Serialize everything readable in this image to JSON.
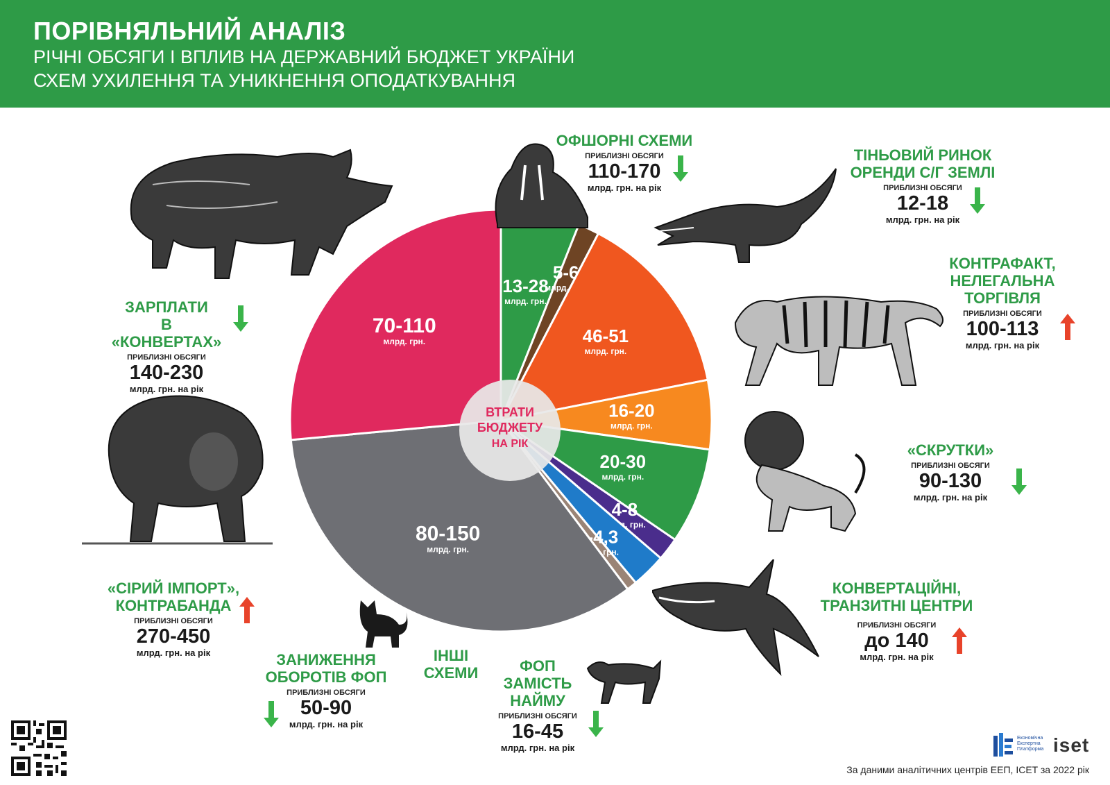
{
  "header": {
    "title": "ПОРІВНЯЛЬНИЙ АНАЛІЗ",
    "subtitle_line1": "РІЧНІ ОБСЯГИ І ВПЛИВ НА ДЕРЖАВНИЙ БЮДЖЕТ УКРАЇНИ",
    "subtitle_line2": "СХЕМ УХИЛЕННЯ ТА УНИКНЕННЯ ОПОДАТКУВАННЯ"
  },
  "center_label": [
    "ВТРАТИ",
    "БЮДЖЕТУ",
    "НА РІК"
  ],
  "schemes": [
    {
      "id": "offshore",
      "name": [
        "ОФШОРНІ СХЕМИ"
      ],
      "volume_label": "ПРИБЛИЗНІ ОБСЯГИ",
      "volume": "110-170",
      "unit": "млрд. грн. на рік",
      "trend": "down",
      "animal": "walrus"
    },
    {
      "id": "land",
      "name": [
        "ТІНЬОВИЙ РИНОК",
        "ОРЕНДИ С/Г ЗЕМЛІ"
      ],
      "volume_label": "ПРИБЛИЗНІ ОБСЯГИ",
      "volume": "12-18",
      "unit": "млрд. грн. на рік",
      "trend": "down",
      "animal": "crocodile"
    },
    {
      "id": "counterfeit",
      "name": [
        "КОНТРАФАКТ,",
        "НЕЛЕГАЛЬНА",
        "ТОРГІВЛЯ"
      ],
      "volume_label": "ПРИБЛИЗНІ ОБСЯГИ",
      "volume": "100-113",
      "unit": "млрд. грн. на рік",
      "trend": "up",
      "animal": "tiger"
    },
    {
      "id": "twists",
      "name": [
        "«СКРУТКИ»"
      ],
      "volume_label": "ПРИБЛИЗНІ ОБСЯГИ",
      "volume": "90-130",
      "unit": "млрд. грн. на рік",
      "trend": "down",
      "animal": "lion"
    },
    {
      "id": "conversion",
      "name": [
        "КОНВЕРТАЦІЙНІ,",
        "ТРАНЗИТНІ ЦЕНТРИ"
      ],
      "volume_label": "ПРИБЛИЗНІ ОБСЯГИ",
      "volume": "до 140",
      "unit": "млрд. грн. на рік",
      "trend": "up",
      "animal": "shark"
    },
    {
      "id": "fop_hire",
      "name": [
        "ФОП ЗАМІСТЬ",
        "НАЙМУ"
      ],
      "volume_label": "ПРИБЛИЗНІ ОБСЯГИ",
      "volume": "16-45",
      "unit": "млрд. грн. на рік",
      "trend": "down",
      "animal": "wolf"
    },
    {
      "id": "other",
      "name": [
        "ІНШІ",
        "СХЕМИ"
      ],
      "animal": "cat"
    },
    {
      "id": "fop_turnover",
      "name": [
        "ЗАНИЖЕННЯ",
        "ОБОРОТІВ ФОП"
      ],
      "volume_label": "ПРИБЛИЗНІ ОБСЯГИ",
      "volume": "50-90",
      "unit": "млрд. грн. на рік",
      "trend": "down"
    },
    {
      "id": "import",
      "name": [
        "«СІРИЙ ІМПОРТ»,",
        "КОНТРАБАНДА"
      ],
      "volume_label": "ПРИБЛИЗНІ ОБСЯГИ",
      "volume": "270-450",
      "unit": "млрд. грн. на рік",
      "trend": "up",
      "animal": "bear"
    },
    {
      "id": "salaries",
      "name": [
        "ЗАРПЛАТИ",
        "В «КОНВЕРТАХ»"
      ],
      "volume_label": "ПРИБЛИЗНІ ОБСЯГИ",
      "volume": "140-230",
      "unit": "млрд. грн. на рік",
      "trend": "down",
      "animal": "rhino"
    }
  ],
  "chart_data": {
    "type": "pie",
    "title": "ВТРАТИ БЮДЖЕТУ НА РІК",
    "unit_label": "млрд. грн.",
    "slices": [
      {
        "label": "13-28",
        "value": 20.5,
        "color": "#2e9b47",
        "scheme": "offshore"
      },
      {
        "label": "5-6",
        "value": 5.5,
        "color": "#6e4424",
        "scheme": "land"
      },
      {
        "label": "46-51",
        "value": 48.5,
        "color": "#f0571f",
        "scheme": "counterfeit"
      },
      {
        "label": "16-20",
        "value": 18,
        "color": "#f7891f",
        "scheme": "twists"
      },
      {
        "label": "20-30",
        "value": 25,
        "color": "#2e9b47",
        "scheme": "conversion"
      },
      {
        "label": "4-8",
        "value": 6,
        "color": "#4a2d8c",
        "scheme": "fop_hire"
      },
      {
        "label": "",
        "value": 9,
        "color": "#1f7bc9",
        "scheme": "other"
      },
      {
        "label": "1-4,3",
        "value": 2.65,
        "color": "#9a8476",
        "scheme": "fop_turnover"
      },
      {
        "label": "80-150",
        "value": 115,
        "color": "#6e6f74",
        "scheme": "import"
      },
      {
        "label": "70-110",
        "value": 90,
        "color": "#e0295e",
        "scheme": "salaries"
      }
    ]
  },
  "footer": {
    "source": "За даними аналітичних центрів ЕЕП, ICET за 2022 рік",
    "eep_logo_text": [
      "Економічна",
      "Експертна",
      "Платформа"
    ],
    "iset_logo": "iset"
  }
}
